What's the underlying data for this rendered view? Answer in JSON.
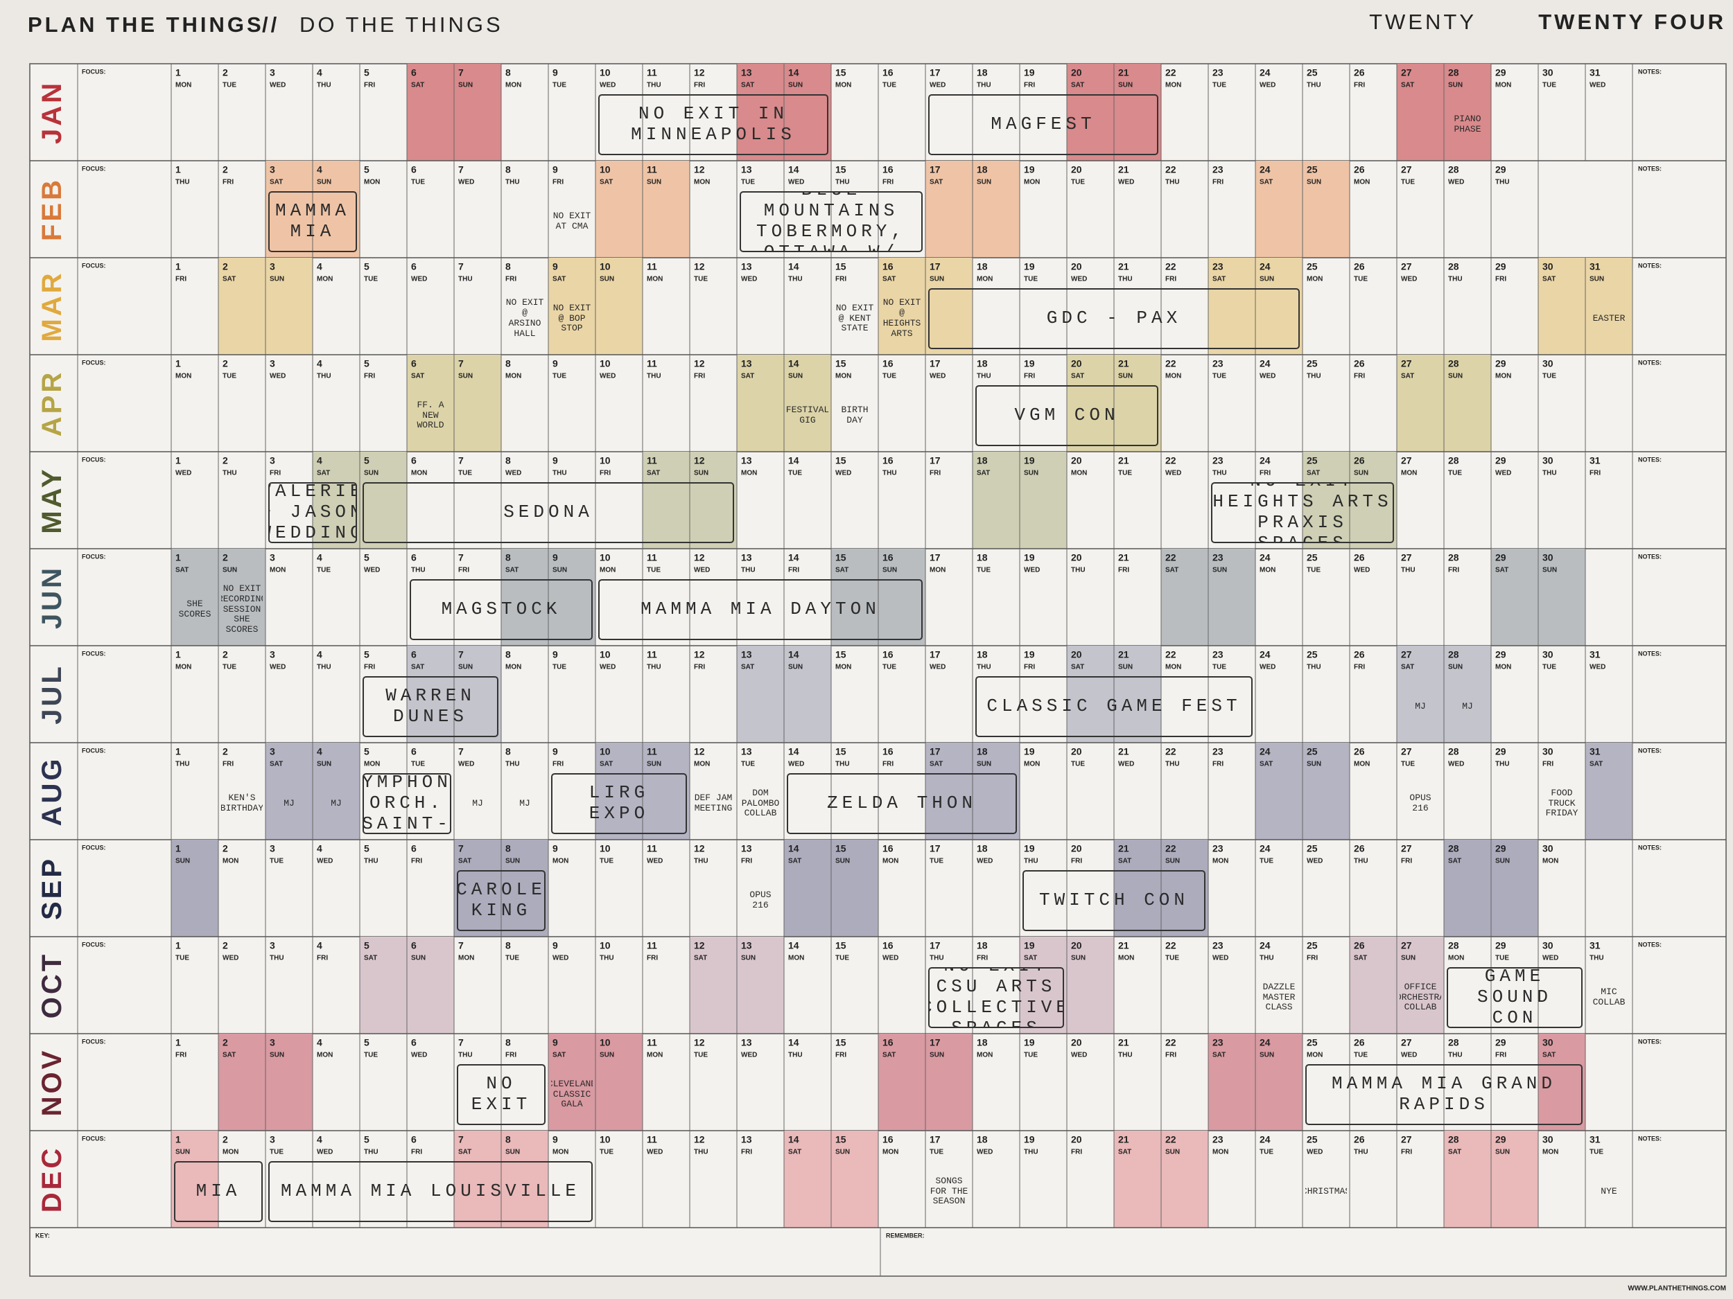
{
  "header": {
    "title_bold": "PLAN THE THINGS",
    "separator": "//",
    "title_light": "DO THE THINGS",
    "year_light": "TWENTY",
    "year_bold": "TWENTY FOUR"
  },
  "labels": {
    "focus": "FOCUS:",
    "notes": "NOTES:",
    "key": "KEY:",
    "remember": "REMEMBER:",
    "website": "WWW.PLANTHETHINGS.COM"
  },
  "months": [
    {
      "name": "JAN",
      "color": "#b8323a",
      "shade": "#d98a8c",
      "days": [
        1,
        2,
        3,
        4,
        5,
        6,
        7,
        8,
        9,
        10,
        11,
        12,
        13,
        14,
        15,
        16,
        17,
        18,
        19,
        20,
        21,
        22,
        23,
        24,
        25,
        26,
        27,
        28,
        29,
        30,
        31
      ],
      "weekdays": [
        "MON",
        "TUE",
        "WED",
        "THU",
        "FRI",
        "SAT",
        "SUN",
        "MON",
        "TUE",
        "WED",
        "THU",
        "FRI",
        "SAT",
        "SUN",
        "MON",
        "TUE",
        "WED",
        "THU",
        "FRI",
        "SAT",
        "SUN",
        "MON",
        "TUE",
        "WED",
        "THU",
        "FRI",
        "SAT",
        "SUN",
        "MON",
        "TUE",
        "WED"
      ],
      "events": [
        {
          "text": "NO EXIT IN MINNEAPOLIS",
          "from": 10,
          "to": 14
        },
        {
          "text": "MAGFEST",
          "from": 17,
          "to": 21
        },
        {
          "text": "PIANO PHASE",
          "from": 28,
          "to": 28
        }
      ]
    },
    {
      "name": "FEB",
      "color": "#d9793a",
      "shade": "#efc4a6",
      "days": [
        1,
        2,
        3,
        4,
        5,
        6,
        7,
        8,
        9,
        10,
        11,
        12,
        13,
        14,
        15,
        16,
        17,
        18,
        19,
        20,
        21,
        22,
        23,
        24,
        25,
        26,
        27,
        28,
        29
      ],
      "weekdays": [
        "THU",
        "FRI",
        "SAT",
        "SUN",
        "MON",
        "TUE",
        "WED",
        "THU",
        "FRI",
        "SAT",
        "SUN",
        "MON",
        "TUE",
        "WED",
        "THU",
        "FRI",
        "SAT",
        "SUN",
        "MON",
        "TUE",
        "WED",
        "THU",
        "FRI",
        "SAT",
        "SUN",
        "MON",
        "TUE",
        "WED",
        "THU"
      ],
      "events": [
        {
          "text": "MAMMA MIA",
          "from": 3,
          "to": 4
        },
        {
          "text": "NO EXIT AT CMA",
          "from": 9,
          "to": 9
        },
        {
          "text": "VACATION IN BLUE MOUNTAINS TOBERMORY, OTTAWA W/ KEN",
          "from": 13,
          "to": 16
        }
      ]
    },
    {
      "name": "MAR",
      "color": "#e0a93e",
      "shade": "#ead5a6",
      "days": [
        1,
        2,
        3,
        4,
        5,
        6,
        7,
        8,
        9,
        10,
        11,
        12,
        13,
        14,
        15,
        16,
        17,
        18,
        19,
        20,
        21,
        22,
        23,
        24,
        25,
        26,
        27,
        28,
        29,
        30,
        31
      ],
      "weekdays": [
        "FRI",
        "SAT",
        "SUN",
        "MON",
        "TUE",
        "WED",
        "THU",
        "FRI",
        "SAT",
        "SUN",
        "MON",
        "TUE",
        "WED",
        "THU",
        "FRI",
        "SAT",
        "SUN",
        "MON",
        "TUE",
        "WED",
        "THU",
        "FRI",
        "SAT",
        "SUN",
        "MON",
        "TUE",
        "WED",
        "THU",
        "FRI",
        "SAT",
        "SUN"
      ],
      "events": [
        {
          "text": "NO EXIT @ ARSINO HALL",
          "from": 8,
          "to": 8
        },
        {
          "text": "NO EXIT @ BOP STOP",
          "from": 9,
          "to": 9
        },
        {
          "text": "NO EXIT @ KENT STATE",
          "from": 15,
          "to": 15
        },
        {
          "text": "NO EXIT @ HEIGHTS ARTS",
          "from": 16,
          "to": 16
        },
        {
          "text": "GDC - PAX",
          "from": 17,
          "to": 24
        },
        {
          "text": "EASTER",
          "from": 31,
          "to": 31
        }
      ]
    },
    {
      "name": "APR",
      "color": "#b5a545",
      "shade": "#dcd3a8",
      "days": [
        1,
        2,
        3,
        4,
        5,
        6,
        7,
        8,
        9,
        10,
        11,
        12,
        13,
        14,
        15,
        16,
        17,
        18,
        19,
        20,
        21,
        22,
        23,
        24,
        25,
        26,
        27,
        28,
        29,
        30
      ],
      "weekdays": [
        "MON",
        "TUE",
        "WED",
        "THU",
        "FRI",
        "SAT",
        "SUN",
        "MON",
        "TUE",
        "WED",
        "THU",
        "FRI",
        "SAT",
        "SUN",
        "MON",
        "TUE",
        "WED",
        "THU",
        "FRI",
        "SAT",
        "SUN",
        "MON",
        "TUE",
        "WED",
        "THU",
        "FRI",
        "SAT",
        "SUN",
        "MON",
        "TUE"
      ],
      "events": [
        {
          "text": "FF. A NEW WORLD",
          "from": 6,
          "to": 6
        },
        {
          "text": "FESTIVAL GIG",
          "from": 14,
          "to": 14
        },
        {
          "text": "BIRTH DAY",
          "from": 15,
          "to": 15
        },
        {
          "text": "VGM CON",
          "from": 18,
          "to": 21
        }
      ]
    },
    {
      "name": "MAY",
      "color": "#4f5a2e",
      "shade": "#cfcfb5",
      "days": [
        1,
        2,
        3,
        4,
        5,
        6,
        7,
        8,
        9,
        10,
        11,
        12,
        13,
        14,
        15,
        16,
        17,
        18,
        19,
        20,
        21,
        22,
        23,
        24,
        25,
        26,
        27,
        28,
        29,
        30,
        31
      ],
      "weekdays": [
        "WED",
        "THU",
        "FRI",
        "SAT",
        "SUN",
        "MON",
        "TUE",
        "WED",
        "THU",
        "FRI",
        "SAT",
        "SUN",
        "MON",
        "TUE",
        "WED",
        "THU",
        "FRI",
        "SAT",
        "SUN",
        "MON",
        "TUE",
        "WED",
        "THU",
        "FRI",
        "SAT",
        "SUN",
        "MON",
        "TUE",
        "WED",
        "THU",
        "FRI"
      ],
      "events": [
        {
          "text": "VALERIE + JASON WEDDING",
          "from": 3,
          "to": 4
        },
        {
          "text": "SEDONA",
          "from": 5,
          "to": 12
        },
        {
          "text": "NO EXIT HEIGHTS ARTS PRAXIS SPACES",
          "from": 23,
          "to": 26
        }
      ]
    },
    {
      "name": "JUN",
      "color": "#3e5560",
      "shade": "#b9bdc0",
      "days": [
        1,
        2,
        3,
        4,
        5,
        6,
        7,
        8,
        9,
        10,
        11,
        12,
        13,
        14,
        15,
        16,
        17,
        18,
        19,
        20,
        21,
        22,
        23,
        24,
        25,
        26,
        27,
        28,
        29,
        30
      ],
      "weekdays": [
        "SAT",
        "SUN",
        "MON",
        "TUE",
        "WED",
        "THU",
        "FRI",
        "SAT",
        "SUN",
        "MON",
        "TUE",
        "WED",
        "THU",
        "FRI",
        "SAT",
        "SUN",
        "MON",
        "TUE",
        "WED",
        "THU",
        "FRI",
        "SAT",
        "SUN",
        "MON",
        "TUE",
        "WED",
        "THU",
        "FRI",
        "SAT",
        "SUN"
      ],
      "events": [
        {
          "text": "SHE SCORES",
          "from": 1,
          "to": 1
        },
        {
          "text": "NO EXIT RECORDING SESSION SHE SCORES",
          "from": 2,
          "to": 2
        },
        {
          "text": "MAGSTOCK",
          "from": 6,
          "to": 9
        },
        {
          "text": "MAMMA MIA DAYTON",
          "from": 10,
          "to": 16
        }
      ]
    },
    {
      "name": "JUL",
      "color": "#3d4656",
      "shade": "#c3c4cc",
      "days": [
        1,
        2,
        3,
        4,
        5,
        6,
        7,
        8,
        9,
        10,
        11,
        12,
        13,
        14,
        15,
        16,
        17,
        18,
        19,
        20,
        21,
        22,
        23,
        24,
        25,
        26,
        27,
        28,
        29,
        30,
        31
      ],
      "weekdays": [
        "MON",
        "TUE",
        "WED",
        "THU",
        "FRI",
        "SAT",
        "SUN",
        "MON",
        "TUE",
        "WED",
        "THU",
        "FRI",
        "SAT",
        "SUN",
        "MON",
        "TUE",
        "WED",
        "THU",
        "FRI",
        "SAT",
        "SUN",
        "MON",
        "TUE",
        "WED",
        "THU",
        "FRI",
        "SAT",
        "SUN",
        "MON",
        "TUE",
        "WED"
      ],
      "events": [
        {
          "text": "WARREN DUNES",
          "from": 5,
          "to": 7
        },
        {
          "text": "CLASSIC GAME FEST",
          "from": 18,
          "to": 23
        },
        {
          "text": "MJ",
          "from": 27,
          "to": 27
        },
        {
          "text": "MJ",
          "from": 28,
          "to": 28
        }
      ]
    },
    {
      "name": "AUG",
      "color": "#2c3350",
      "shade": "#b4b4c3",
      "days": [
        1,
        2,
        3,
        4,
        5,
        6,
        7,
        8,
        9,
        10,
        11,
        12,
        13,
        14,
        15,
        16,
        17,
        18,
        19,
        20,
        21,
        22,
        23,
        24,
        25,
        26,
        27,
        28,
        29,
        30,
        31
      ],
      "weekdays": [
        "THU",
        "FRI",
        "SAT",
        "SUN",
        "MON",
        "TUE",
        "WED",
        "THU",
        "FRI",
        "SAT",
        "SUN",
        "MON",
        "TUE",
        "WED",
        "THU",
        "FRI",
        "SAT",
        "SUN",
        "MON",
        "TUE",
        "WED",
        "THU",
        "FRI",
        "SAT",
        "SUN",
        "MON",
        "TUE",
        "WED",
        "THU",
        "FRI",
        "SAT"
      ],
      "events": [
        {
          "text": "KEN'S BIRTHDAY",
          "from": 2,
          "to": 2
        },
        {
          "text": "MJ",
          "from": 3,
          "to": 3
        },
        {
          "text": "MJ",
          "from": 4,
          "to": 4
        },
        {
          "text": "LAKESIDE SYMPHONY ORCH. SAINT-SAENS",
          "from": 5,
          "to": 6
        },
        {
          "text": "MJ",
          "from": 7,
          "to": 7
        },
        {
          "text": "MJ",
          "from": 8,
          "to": 8
        },
        {
          "text": "LIRG EXPO",
          "from": 9,
          "to": 11
        },
        {
          "text": "DEF JAM MEETING",
          "from": 12,
          "to": 12
        },
        {
          "text": "DOM PALOMBO COLLAB",
          "from": 13,
          "to": 13
        },
        {
          "text": "ZELDA THON",
          "from": 14,
          "to": 18
        },
        {
          "text": "OPUS 216",
          "from": 27,
          "to": 27
        },
        {
          "text": "FOOD TRUCK FRIDAY",
          "from": 30,
          "to": 30
        }
      ]
    },
    {
      "name": "SEP",
      "color": "#232a45",
      "shade": "#acacbd",
      "days": [
        1,
        2,
        3,
        4,
        5,
        6,
        7,
        8,
        9,
        10,
        11,
        12,
        13,
        14,
        15,
        16,
        17,
        18,
        19,
        20,
        21,
        22,
        23,
        24,
        25,
        26,
        27,
        28,
        29,
        30
      ],
      "weekdays": [
        "SUN",
        "MON",
        "TUE",
        "WED",
        "THU",
        "FRI",
        "SAT",
        "SUN",
        "MON",
        "TUE",
        "WED",
        "THU",
        "FRI",
        "SAT",
        "SUN",
        "MON",
        "TUE",
        "WED",
        "THU",
        "FRI",
        "SAT",
        "SUN",
        "MON",
        "TUE",
        "WED",
        "THU",
        "FRI",
        "SAT",
        "SUN",
        "MON"
      ],
      "events": [
        {
          "text": "CAROLE KING",
          "from": 7,
          "to": 8
        },
        {
          "text": "OPUS 216",
          "from": 13,
          "to": 13
        },
        {
          "text": "TWITCH CON",
          "from": 19,
          "to": 22
        }
      ]
    },
    {
      "name": "OCT",
      "color": "#3e2a3e",
      "shade": "#d9c6cd",
      "days": [
        1,
        2,
        3,
        4,
        5,
        6,
        7,
        8,
        9,
        10,
        11,
        12,
        13,
        14,
        15,
        16,
        17,
        18,
        19,
        20,
        21,
        22,
        23,
        24,
        25,
        26,
        27,
        28,
        29,
        30,
        31
      ],
      "weekdays": [
        "TUE",
        "WED",
        "THU",
        "FRI",
        "SAT",
        "SUN",
        "MON",
        "TUE",
        "WED",
        "THU",
        "FRI",
        "SAT",
        "SUN",
        "MON",
        "TUE",
        "WED",
        "THU",
        "FRI",
        "SAT",
        "SUN",
        "MON",
        "TUE",
        "WED",
        "THU",
        "FRI",
        "SAT",
        "SUN",
        "MON",
        "TUE",
        "WED",
        "THU"
      ],
      "events": [
        {
          "text": "NO EXIT CSU ARTS COLLECTIVE SPACES",
          "from": 17,
          "to": 19
        },
        {
          "text": "DAZZLE MASTER CLASS",
          "from": 24,
          "to": 24
        },
        {
          "text": "OFFICE ORCHESTRA COLLAB",
          "from": 27,
          "to": 27
        },
        {
          "text": "GAME SOUND CON",
          "from": 28,
          "to": 30
        },
        {
          "text": "MIC COLLAB",
          "from": 31,
          "to": 31
        }
      ]
    },
    {
      "name": "NOV",
      "color": "#6a2430",
      "shade": "#d99aa2",
      "days": [
        1,
        2,
        3,
        4,
        5,
        6,
        7,
        8,
        9,
        10,
        11,
        12,
        13,
        14,
        15,
        16,
        17,
        18,
        19,
        20,
        21,
        22,
        23,
        24,
        25,
        26,
        27,
        28,
        29,
        30
      ],
      "weekdays": [
        "FRI",
        "SAT",
        "SUN",
        "MON",
        "TUE",
        "WED",
        "THU",
        "FRI",
        "SAT",
        "SUN",
        "MON",
        "TUE",
        "WED",
        "THU",
        "FRI",
        "SAT",
        "SUN",
        "MON",
        "TUE",
        "WED",
        "THU",
        "FRI",
        "SAT",
        "SUN",
        "MON",
        "TUE",
        "WED",
        "THU",
        "FRI",
        "SAT"
      ],
      "events": [
        {
          "text": "NO EXIT",
          "from": 7,
          "to": 8
        },
        {
          "text": "CLEVELAND CLASSIC GALA",
          "from": 9,
          "to": 9
        },
        {
          "text": "MAMMA MIA GRAND RAPIDS",
          "from": 25,
          "to": 30
        }
      ]
    },
    {
      "name": "DEC",
      "color": "#a8283a",
      "shade": "#eab9b9",
      "days": [
        1,
        2,
        3,
        4,
        5,
        6,
        7,
        8,
        9,
        10,
        11,
        12,
        13,
        14,
        15,
        16,
        17,
        18,
        19,
        20,
        21,
        22,
        23,
        24,
        25,
        26,
        27,
        28,
        29,
        30,
        31
      ],
      "weekdays": [
        "SUN",
        "MON",
        "TUE",
        "WED",
        "THU",
        "FRI",
        "SAT",
        "SUN",
        "MON",
        "TUE",
        "WED",
        "THU",
        "FRI",
        "SAT",
        "SUN",
        "MON",
        "TUE",
        "WED",
        "THU",
        "FRI",
        "SAT",
        "SUN",
        "MON",
        "TUE",
        "WED",
        "THU",
        "FRI",
        "SAT",
        "SUN",
        "MON",
        "TUE"
      ],
      "events": [
        {
          "text": "MIA",
          "from": 1,
          "to": 2
        },
        {
          "text": "MAMMA MIA LOUISVILLE",
          "from": 3,
          "to": 9
        },
        {
          "text": "SONGS FOR THE SEASON",
          "from": 17,
          "to": 17
        },
        {
          "text": "CHRISTMAS",
          "from": 25,
          "to": 25
        },
        {
          "text": "NYE",
          "from": 31,
          "to": 31
        }
      ]
    }
  ]
}
